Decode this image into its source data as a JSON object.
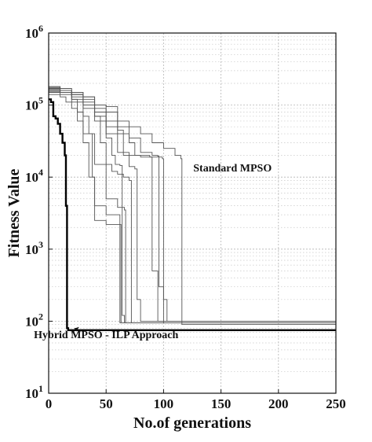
{
  "chart_data": {
    "type": "line",
    "title": "",
    "xlabel": "No.of generations",
    "ylabel": "Fitness Value",
    "xlim": [
      0,
      250
    ],
    "ylim": [
      10,
      1000000
    ],
    "yscale": "log",
    "grid": true,
    "x_ticks": [
      0,
      50,
      100,
      150,
      200,
      250
    ],
    "x_tick_labels": [
      "0",
      "50",
      "100",
      "150",
      "200",
      "250"
    ],
    "y_ticks": [
      10,
      100,
      1000,
      10000,
      100000,
      1000000
    ],
    "y_tick_labels": [
      {
        "base": "10",
        "exp": "1"
      },
      {
        "base": "10",
        "exp": "2"
      },
      {
        "base": "10",
        "exp": "3"
      },
      {
        "base": "10",
        "exp": "4"
      },
      {
        "base": "10",
        "exp": "5"
      },
      {
        "base": "10",
        "exp": "6"
      }
    ],
    "annotations": [
      {
        "text": "Standard MPSO",
        "x": 160,
        "y": 12000
      },
      {
        "text": "Hybrid MPSO - ILP Approach",
        "x": 50,
        "y": 58,
        "arrow_to": {
          "x": 20,
          "y": 72
        }
      }
    ],
    "series": [
      {
        "style": "thick",
        "color": "#000000",
        "points": [
          [
            0,
            120000
          ],
          [
            2,
            110000
          ],
          [
            4,
            70000
          ],
          [
            6,
            65000
          ],
          [
            8,
            55000
          ],
          [
            10,
            40000
          ],
          [
            12,
            30000
          ],
          [
            14,
            20000
          ],
          [
            15,
            4000
          ],
          [
            16,
            80
          ],
          [
            17,
            75
          ],
          [
            250,
            75
          ]
        ]
      },
      {
        "style": "thin",
        "color": "#555555",
        "points": [
          [
            0,
            160000
          ],
          [
            10,
            150000
          ],
          [
            20,
            140000
          ],
          [
            30,
            120000
          ],
          [
            40,
            100000
          ],
          [
            50,
            95000
          ],
          [
            60,
            60000
          ],
          [
            70,
            50000
          ],
          [
            80,
            40000
          ],
          [
            90,
            30000
          ],
          [
            100,
            25000
          ],
          [
            110,
            20000
          ],
          [
            115,
            18000
          ],
          [
            116,
            90
          ],
          [
            250,
            90
          ]
        ]
      },
      {
        "style": "thin",
        "color": "#555555",
        "points": [
          [
            0,
            180000
          ],
          [
            10,
            160000
          ],
          [
            20,
            150000
          ],
          [
            30,
            130000
          ],
          [
            40,
            80000
          ],
          [
            50,
            50000
          ],
          [
            60,
            40000
          ],
          [
            70,
            30000
          ],
          [
            75,
            20000
          ],
          [
            88,
            19000
          ],
          [
            90,
            500
          ],
          [
            95,
            100
          ],
          [
            250,
            100
          ]
        ]
      },
      {
        "style": "thin",
        "color": "#555555",
        "points": [
          [
            0,
            170000
          ],
          [
            10,
            150000
          ],
          [
            20,
            120000
          ],
          [
            30,
            90000
          ],
          [
            40,
            60000
          ],
          [
            50,
            40000
          ],
          [
            60,
            22000
          ],
          [
            70,
            20000
          ],
          [
            80,
            19000
          ],
          [
            99,
            18000
          ],
          [
            100,
            200
          ],
          [
            103,
            100
          ],
          [
            250,
            100
          ]
        ]
      },
      {
        "style": "thin",
        "color": "#555555",
        "points": [
          [
            0,
            160000
          ],
          [
            10,
            150000
          ],
          [
            20,
            140000
          ],
          [
            30,
            100000
          ],
          [
            40,
            70000
          ],
          [
            45,
            30000
          ],
          [
            50,
            15000
          ],
          [
            55,
            12000
          ],
          [
            60,
            11000
          ],
          [
            65,
            10000
          ],
          [
            70,
            9000
          ],
          [
            72,
            95
          ],
          [
            250,
            95
          ]
        ]
      },
      {
        "style": "thin",
        "color": "#555555",
        "points": [
          [
            0,
            165000
          ],
          [
            10,
            150000
          ],
          [
            20,
            120000
          ],
          [
            25,
            80000
          ],
          [
            30,
            40000
          ],
          [
            40,
            15000
          ],
          [
            50,
            5000
          ],
          [
            60,
            3800
          ],
          [
            66,
            3500
          ],
          [
            67,
            95
          ],
          [
            250,
            95
          ]
        ]
      },
      {
        "style": "thin",
        "color": "#555555",
        "points": [
          [
            0,
            150000
          ],
          [
            10,
            140000
          ],
          [
            20,
            110000
          ],
          [
            30,
            70000
          ],
          [
            35,
            40000
          ],
          [
            38,
            10000
          ],
          [
            40,
            4000
          ],
          [
            50,
            3000
          ],
          [
            60,
            3000
          ],
          [
            62,
            95
          ],
          [
            250,
            95
          ]
        ]
      },
      {
        "style": "thin",
        "color": "#555555",
        "points": [
          [
            0,
            140000
          ],
          [
            10,
            130000
          ],
          [
            15,
            110000
          ],
          [
            20,
            90000
          ],
          [
            25,
            60000
          ],
          [
            30,
            30000
          ],
          [
            35,
            10000
          ],
          [
            40,
            2500
          ],
          [
            50,
            2200
          ],
          [
            60,
            2200
          ],
          [
            63,
            95
          ],
          [
            250,
            95
          ]
        ]
      },
      {
        "style": "thin",
        "color": "#555555",
        "points": [
          [
            0,
            175000
          ],
          [
            10,
            160000
          ],
          [
            20,
            140000
          ],
          [
            30,
            110000
          ],
          [
            40,
            90000
          ],
          [
            50,
            60000
          ],
          [
            60,
            45000
          ],
          [
            65,
            20000
          ],
          [
            70,
            14000
          ],
          [
            75,
            13000
          ],
          [
            77,
            200
          ],
          [
            80,
            100
          ],
          [
            250,
            100
          ]
        ]
      },
      {
        "style": "thin",
        "color": "#555555",
        "points": [
          [
            0,
            155000
          ],
          [
            10,
            150000
          ],
          [
            20,
            130000
          ],
          [
            30,
            100000
          ],
          [
            40,
            70000
          ],
          [
            50,
            35000
          ],
          [
            55,
            20000
          ],
          [
            58,
            15000
          ],
          [
            62,
            14500
          ],
          [
            64,
            120
          ],
          [
            66,
            95
          ],
          [
            250,
            95
          ]
        ]
      },
      {
        "style": "thin",
        "color": "#555555",
        "points": [
          [
            0,
            180000
          ],
          [
            10,
            170000
          ],
          [
            20,
            150000
          ],
          [
            30,
            130000
          ],
          [
            40,
            100000
          ],
          [
            50,
            80000
          ],
          [
            60,
            50000
          ],
          [
            70,
            35000
          ],
          [
            80,
            22000
          ],
          [
            90,
            20000
          ],
          [
            95,
            19500
          ],
          [
            96,
            300
          ],
          [
            100,
            95
          ],
          [
            250,
            95
          ]
        ]
      }
    ]
  }
}
